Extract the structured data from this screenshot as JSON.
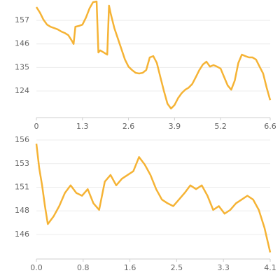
{
  "chart_data": [
    {
      "type": "line",
      "color": "#f5b335",
      "grid": true,
      "x": [
        0,
        0.1,
        0.2,
        0.3,
        0.4,
        0.5,
        0.6,
        0.7,
        0.8,
        0.9,
        1.0,
        1.05,
        1.1,
        1.2,
        1.3,
        1.4,
        1.5,
        1.6,
        1.7,
        1.75,
        1.8,
        1.9,
        2.0,
        2.05,
        2.1,
        2.2,
        2.3,
        2.4,
        2.5,
        2.6,
        2.7,
        2.8,
        2.9,
        3.0,
        3.1,
        3.2,
        3.3,
        3.4,
        3.5,
        3.6,
        3.7,
        3.8,
        3.9,
        4.0,
        4.1,
        4.2,
        4.3,
        4.4,
        4.5,
        4.6,
        4.7,
        4.8,
        4.9,
        5.0,
        5.1,
        5.2,
        5.3,
        5.4,
        5.5,
        5.6,
        5.7,
        5.8,
        5.9,
        6.0,
        6.1,
        6.2,
        6.3,
        6.4,
        6.5,
        6.6
      ],
      "values": [
        163.2,
        160.6,
        157.3,
        155,
        154,
        153.4,
        152.8,
        151.8,
        151.1,
        150.1,
        147.5,
        146,
        154,
        154.4,
        155,
        158.3,
        162.6,
        165.5,
        165.8,
        142,
        143,
        142,
        141,
        163.9,
        160,
        153.4,
        148.5,
        143.6,
        138.7,
        135.4,
        133.8,
        132.5,
        132.2,
        132.5,
        133.8,
        139.7,
        140.3,
        137.1,
        130.5,
        124,
        118.1,
        115.8,
        117.5,
        120.7,
        123,
        124.6,
        125.6,
        127.3,
        130.5,
        133.8,
        136.4,
        137.7,
        135.4,
        136.1,
        135.4,
        134.5,
        130.5,
        126.6,
        124.6,
        128.9,
        137.1,
        141,
        140.3,
        139.7,
        139.7,
        138.7,
        135.4,
        132.2,
        125.6,
        119.7
      ],
      "xlim": [
        0,
        6.6
      ],
      "ylim": [
        111.6,
        166.5
      ],
      "xticks": [
        0,
        1.3,
        2.6,
        3.9,
        5.2,
        6.6
      ],
      "yticks": [
        157,
        146,
        135,
        124
      ]
    },
    {
      "type": "line",
      "color": "#f5b335",
      "grid": true,
      "x": [
        0,
        0.05,
        0.1,
        0.15,
        0.2,
        0.3,
        0.4,
        0.5,
        0.6,
        0.7,
        0.8,
        0.9,
        1.0,
        1.1,
        1.2,
        1.3,
        1.4,
        1.5,
        1.6,
        1.7,
        1.8,
        1.9,
        2.0,
        2.1,
        2.2,
        2.3,
        2.4,
        2.5,
        2.6,
        2.7,
        2.8,
        2.9,
        3.0,
        3.1,
        3.2,
        3.3,
        3.4,
        3.5,
        3.6,
        3.7,
        3.8,
        3.9,
        4.0,
        4.1
      ],
      "values": [
        155.4,
        152.8,
        151,
        148.8,
        146.9,
        147.7,
        148.8,
        150.2,
        151,
        150.2,
        149.9,
        150.6,
        149.1,
        148.4,
        151.4,
        152.1,
        151,
        151.7,
        152.1,
        152.5,
        154,
        153.2,
        152.1,
        150.6,
        149.5,
        149.1,
        148.8,
        149.5,
        150.2,
        151,
        150.6,
        151,
        149.9,
        148.4,
        148.8,
        148,
        148.4,
        149.1,
        149.5,
        149.9,
        149.5,
        148.4,
        146.5,
        143.9
      ],
      "xlim": [
        0,
        4.1
      ],
      "ylim": [
        143.2,
        156.1
      ],
      "xticks": [
        {
          "value": 0,
          "label": "0.0"
        },
        {
          "value": 0.82,
          "label": "0.8"
        },
        {
          "value": 1.64,
          "label": "1.6"
        },
        {
          "value": 2.46,
          "label": "2.5"
        },
        {
          "value": 3.28,
          "label": "3.3"
        },
        4.1
      ],
      "yticks": [
        {
          "value": 155.8,
          "label": "156"
        },
        {
          "value": 153.3,
          "label": "153"
        },
        {
          "value": 150.8,
          "label": "151"
        },
        {
          "value": 148.3,
          "label": "148"
        },
        {
          "value": 145.8,
          "label": "146"
        }
      ]
    }
  ]
}
